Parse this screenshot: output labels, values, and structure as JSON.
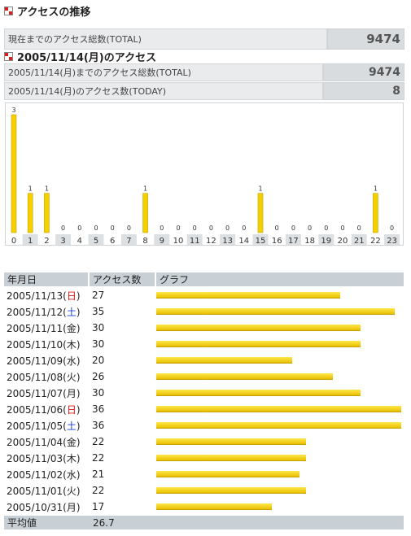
{
  "section1": {
    "title": "アクセスの推移"
  },
  "total_row": {
    "label": "現在までのアクセス総数(TOTAL)",
    "value": "9474"
  },
  "section2": {
    "title": "2005/11/14(月)のアクセス"
  },
  "day_total_row": {
    "label": "2005/11/14(月)までのアクセス総数(TOTAL)",
    "value": "9474"
  },
  "day_today_row": {
    "label": "2005/11/14(月)のアクセス数(TODAY)",
    "value": "8"
  },
  "chart_data": {
    "type": "bar",
    "categories": [
      "0",
      "1",
      "2",
      "3",
      "4",
      "5",
      "6",
      "7",
      "8",
      "9",
      "10",
      "11",
      "12",
      "13",
      "14",
      "15",
      "16",
      "17",
      "18",
      "19",
      "20",
      "21",
      "22",
      "23"
    ],
    "values": [
      3,
      1,
      1,
      0,
      0,
      0,
      0,
      0,
      1,
      0,
      0,
      0,
      0,
      0,
      0,
      1,
      0,
      0,
      0,
      0,
      0,
      0,
      1,
      0
    ],
    "ylim": [
      0,
      3
    ],
    "bar_color": "#f5d000"
  },
  "table": {
    "headers": [
      "年月日",
      "アクセス数",
      "グラフ"
    ],
    "max_value": 36,
    "rows": [
      {
        "date": "2005/11/13(",
        "dow": "日",
        "dow_type": "sun",
        "count": "27",
        "value": 27
      },
      {
        "date": "2005/11/12(",
        "dow": "土",
        "dow_type": "sat",
        "count": "35",
        "value": 35
      },
      {
        "date": "2005/11/11(",
        "dow": "金",
        "dow_type": "",
        "count": "30",
        "value": 30
      },
      {
        "date": "2005/11/10(",
        "dow": "木",
        "dow_type": "",
        "count": "30",
        "value": 30
      },
      {
        "date": "2005/11/09(",
        "dow": "水",
        "dow_type": "",
        "count": "20",
        "value": 20
      },
      {
        "date": "2005/11/08(",
        "dow": "火",
        "dow_type": "",
        "count": "26",
        "value": 26
      },
      {
        "date": "2005/11/07(",
        "dow": "月",
        "dow_type": "",
        "count": "30",
        "value": 30
      },
      {
        "date": "2005/11/06(",
        "dow": "日",
        "dow_type": "sun",
        "count": "36",
        "value": 36
      },
      {
        "date": "2005/11/05(",
        "dow": "土",
        "dow_type": "sat",
        "count": "36",
        "value": 36
      },
      {
        "date": "2005/11/04(",
        "dow": "金",
        "dow_type": "",
        "count": "22",
        "value": 22
      },
      {
        "date": "2005/11/03(",
        "dow": "木",
        "dow_type": "",
        "count": "22",
        "value": 22
      },
      {
        "date": "2005/11/02(",
        "dow": "水",
        "dow_type": "",
        "count": "21",
        "value": 21
      },
      {
        "date": "2005/11/01(",
        "dow": "火",
        "dow_type": "",
        "count": "22",
        "value": 22
      },
      {
        "date": "2005/10/31(",
        "dow": "月",
        "dow_type": "",
        "count": "17",
        "value": 17
      }
    ],
    "average": {
      "label": "平均値",
      "value": "26.7"
    }
  },
  "colors": {
    "bar": "#f5d000",
    "sunday": "#d41a1a",
    "saturday": "#1a3fd4",
    "header_bg": "#c8d0d6"
  }
}
